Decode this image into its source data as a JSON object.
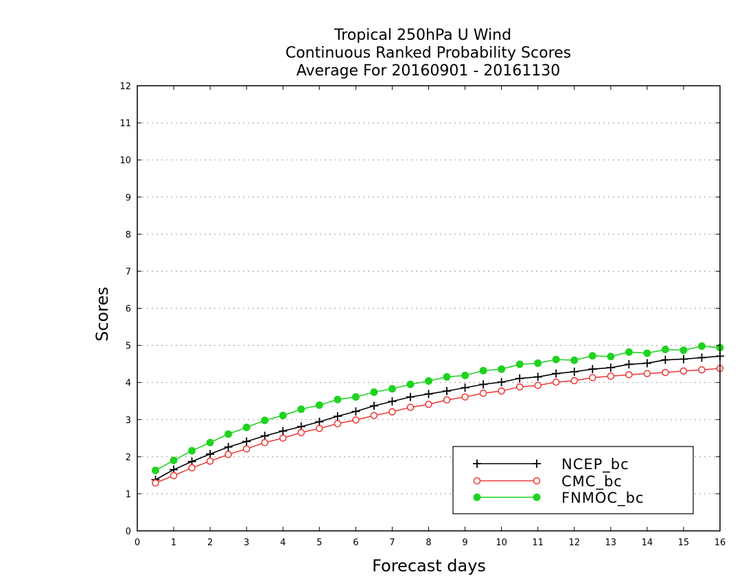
{
  "chart_data": {
    "type": "line",
    "title_lines": [
      "Tropical 250hPa U Wind",
      "Continuous Ranked Probability Scores",
      "Average For 20160901 - 20161130"
    ],
    "xlabel": "Forecast days",
    "ylabel": "Scores",
    "xlim": [
      0,
      16
    ],
    "ylim": [
      0,
      12
    ],
    "xticks": [
      0,
      1,
      2,
      3,
      4,
      5,
      6,
      7,
      8,
      9,
      10,
      11,
      12,
      13,
      14,
      15,
      16
    ],
    "yticks": [
      0,
      1,
      2,
      3,
      4,
      5,
      6,
      7,
      8,
      9,
      10,
      11,
      12
    ],
    "grid": "horizontal dotted",
    "legend_position": "bottom-right",
    "x": [
      0.5,
      1,
      1.5,
      2,
      2.5,
      3,
      3.5,
      4,
      4.5,
      5,
      5.5,
      6,
      6.5,
      7,
      7.5,
      8,
      8.5,
      9,
      9.5,
      10,
      10.5,
      11,
      11.5,
      12,
      12.5,
      13,
      13.5,
      14,
      14.5,
      15,
      15.5,
      16
    ],
    "series": [
      {
        "name": "NCEP_bc",
        "color": "#000000",
        "marker": "plus",
        "values": [
          1.38,
          1.65,
          1.87,
          2.07,
          2.26,
          2.41,
          2.56,
          2.69,
          2.81,
          2.94,
          3.09,
          3.22,
          3.37,
          3.49,
          3.61,
          3.69,
          3.77,
          3.86,
          3.95,
          4.01,
          4.11,
          4.15,
          4.24,
          4.29,
          4.36,
          4.4,
          4.49,
          4.52,
          4.61,
          4.63,
          4.67,
          4.71
        ]
      },
      {
        "name": "CMC_bc",
        "color": "#e8403c",
        "marker": "open-circle",
        "values": [
          1.29,
          1.49,
          1.7,
          1.88,
          2.06,
          2.21,
          2.38,
          2.5,
          2.65,
          2.76,
          2.89,
          2.99,
          3.11,
          3.21,
          3.33,
          3.41,
          3.53,
          3.61,
          3.71,
          3.77,
          3.88,
          3.92,
          4.01,
          4.05,
          4.13,
          4.17,
          4.21,
          4.24,
          4.27,
          4.31,
          4.34,
          4.38
        ]
      },
      {
        "name": "FNMOC_bc",
        "color": "#1fd31f",
        "marker": "filled-circle",
        "values": [
          1.63,
          1.9,
          2.16,
          2.38,
          2.61,
          2.79,
          2.98,
          3.11,
          3.28,
          3.39,
          3.54,
          3.61,
          3.74,
          3.83,
          3.95,
          4.04,
          4.15,
          4.19,
          4.32,
          4.36,
          4.49,
          4.52,
          4.62,
          4.6,
          4.72,
          4.7,
          4.82,
          4.79,
          4.89,
          4.87,
          4.98,
          4.94
        ]
      }
    ]
  }
}
